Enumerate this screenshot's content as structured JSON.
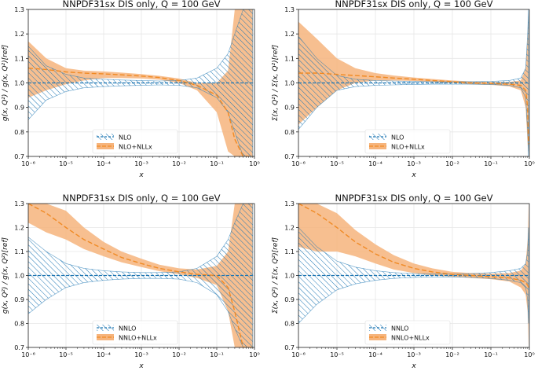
{
  "colors": {
    "blue": "#1f77b4",
    "orange": "#f08a24",
    "orange_fill": "#f6b47c"
  },
  "chart_data": [
    {
      "type": "area",
      "title": "NNPDF31sx DIS only, Q = 100 GeV",
      "xlabel": "x",
      "ylabel": "g(x, Q²) / g(x, Q²)[ref]",
      "xscale": "log",
      "xlim": [
        1e-06,
        1
      ],
      "ylim": [
        0.7,
        1.3
      ],
      "xticks": [
        "10⁻⁶",
        "10⁻⁵",
        "10⁻⁴",
        "10⁻³",
        "10⁻²",
        "10⁻¹",
        "10⁰"
      ],
      "yticks": [
        "0.7",
        "0.8",
        "0.9",
        "1.0",
        "1.1",
        "1.2",
        "1.3"
      ],
      "grid": true,
      "legend_position": "bottom-center",
      "x": [
        1e-06,
        3e-06,
        1e-05,
        3e-05,
        0.0001,
        0.0003,
        0.001,
        0.003,
        0.01,
        0.03,
        0.1,
        0.2,
        0.3,
        0.5,
        0.7,
        0.9
      ],
      "series": [
        {
          "name": "NLO",
          "style": "hatched",
          "central": [
            1,
            1,
            1,
            1,
            1,
            1,
            1,
            1,
            1,
            1,
            1,
            1,
            1,
            1,
            1,
            1
          ],
          "upper": [
            1.15,
            1.07,
            1.035,
            1.02,
            1.015,
            1.012,
            1.01,
            1.008,
            1.01,
            1.02,
            1.06,
            1.12,
            1.2,
            1.3,
            1.3,
            1.3
          ],
          "lower": [
            0.85,
            0.93,
            0.965,
            0.98,
            0.985,
            0.988,
            0.99,
            0.992,
            0.99,
            0.98,
            0.94,
            0.88,
            0.8,
            0.7,
            0.7,
            0.7
          ]
        },
        {
          "name": "NLO+NLLx",
          "style": "filled",
          "central": [
            1.06,
            1.055,
            1.045,
            1.04,
            1.037,
            1.033,
            1.028,
            1.022,
            1.01,
            0.99,
            0.95,
            0.88,
            0.77,
            0.7,
            0.7,
            0.7
          ],
          "upper": [
            1.17,
            1.1,
            1.06,
            1.05,
            1.047,
            1.042,
            1.036,
            1.029,
            1.018,
            1.0,
            1.0,
            1.05,
            1.3,
            1.3,
            1.3,
            1.3
          ],
          "lower": [
            0.94,
            0.97,
            0.995,
            1.01,
            1.02,
            1.02,
            1.018,
            1.013,
            1.0,
            0.97,
            0.88,
            0.72,
            0.7,
            0.7,
            0.7,
            0.7
          ]
        }
      ]
    },
    {
      "type": "area",
      "title": "NNPDF31sx DIS only, Q = 100 GeV",
      "xlabel": "x",
      "ylabel": "Σ(x, Q²) / Σ(x, Q²)[ref]",
      "xscale": "log",
      "xlim": [
        1e-06,
        1
      ],
      "ylim": [
        0.7,
        1.3
      ],
      "xticks": [
        "10⁻⁶",
        "10⁻⁵",
        "10⁻⁴",
        "10⁻³",
        "10⁻²",
        "10⁻¹",
        "10⁰"
      ],
      "yticks": [
        "0.7",
        "0.8",
        "0.9",
        "1.0",
        "1.1",
        "1.2",
        "1.3"
      ],
      "grid": true,
      "legend_position": "bottom-center",
      "x": [
        1e-06,
        3e-06,
        1e-05,
        3e-05,
        0.0001,
        0.0003,
        0.001,
        0.003,
        0.01,
        0.03,
        0.1,
        0.3,
        0.6,
        0.8,
        0.9,
        0.95
      ],
      "series": [
        {
          "name": "NLO",
          "style": "hatched",
          "central": [
            1,
            1,
            1,
            1,
            1,
            1,
            1,
            1,
            1,
            1,
            1,
            1,
            1,
            1,
            1,
            1
          ],
          "upper": [
            1.19,
            1.1,
            1.03,
            1.015,
            1.01,
            1.008,
            1.006,
            1.005,
            1.005,
            1.005,
            1.006,
            1.01,
            1.02,
            1.06,
            1.2,
            1.3
          ],
          "lower": [
            0.81,
            0.9,
            0.97,
            0.985,
            0.99,
            0.992,
            0.994,
            0.995,
            0.995,
            0.995,
            0.994,
            0.99,
            0.98,
            0.94,
            0.8,
            0.7
          ]
        },
        {
          "name": "NLO+NLLx",
          "style": "filled",
          "central": [
            1.04,
            1.04,
            1.035,
            1.03,
            1.025,
            1.02,
            1.015,
            1.01,
            1.005,
            1.0,
            0.998,
            0.995,
            0.99,
            0.97,
            0.9,
            0.75
          ],
          "upper": [
            1.25,
            1.18,
            1.1,
            1.06,
            1.04,
            1.03,
            1.022,
            1.016,
            1.01,
            1.006,
            1.004,
            1.004,
            1.01,
            1.06,
            1.2,
            1.3
          ],
          "lower": [
            0.83,
            0.9,
            0.97,
            1.0,
            1.01,
            1.01,
            1.008,
            1.004,
            1.0,
            0.994,
            0.992,
            0.986,
            0.97,
            0.9,
            0.75,
            0.7
          ]
        }
      ]
    },
    {
      "type": "area",
      "title": "NNPDF31sx DIS only, Q = 100 GeV",
      "xlabel": "x",
      "ylabel": "g(x, Q²) / g(x, Q²)[ref]",
      "xscale": "log",
      "xlim": [
        1e-06,
        1
      ],
      "ylim": [
        0.7,
        1.3
      ],
      "xticks": [
        "10⁻⁶",
        "10⁻⁵",
        "10⁻⁴",
        "10⁻³",
        "10⁻²",
        "10⁻¹",
        "10⁰"
      ],
      "yticks": [
        "0.7",
        "0.8",
        "0.9",
        "1.0",
        "1.1",
        "1.2",
        "1.3"
      ],
      "grid": true,
      "legend_position": "bottom-center",
      "x": [
        1e-06,
        3e-06,
        1e-05,
        3e-05,
        0.0001,
        0.0003,
        0.001,
        0.003,
        0.01,
        0.03,
        0.1,
        0.2,
        0.3,
        0.5,
        0.7,
        0.9
      ],
      "series": [
        {
          "name": "NNLO",
          "style": "hatched",
          "central": [
            1,
            1,
            1,
            1,
            1,
            1,
            1,
            1,
            1,
            1,
            1,
            1,
            1,
            1,
            1,
            1
          ],
          "upper": [
            1.16,
            1.1,
            1.05,
            1.03,
            1.02,
            1.015,
            1.012,
            1.012,
            1.015,
            1.03,
            1.08,
            1.15,
            1.22,
            1.3,
            1.3,
            1.3
          ],
          "lower": [
            0.84,
            0.9,
            0.95,
            0.97,
            0.98,
            0.985,
            0.988,
            0.988,
            0.985,
            0.97,
            0.92,
            0.85,
            0.78,
            0.7,
            0.7,
            0.7
          ]
        },
        {
          "name": "NNLO+NLLx",
          "style": "filled",
          "central": [
            1.3,
            1.26,
            1.2,
            1.15,
            1.11,
            1.075,
            1.05,
            1.03,
            1.015,
            1.005,
            1.0,
            0.95,
            0.85,
            0.7,
            0.7,
            0.7
          ],
          "upper": [
            1.3,
            1.3,
            1.27,
            1.2,
            1.14,
            1.1,
            1.07,
            1.045,
            1.03,
            1.025,
            1.04,
            1.1,
            1.3,
            1.3,
            1.3,
            1.3
          ],
          "lower": [
            1.22,
            1.18,
            1.15,
            1.11,
            1.08,
            1.055,
            1.035,
            1.018,
            1.005,
            0.99,
            0.96,
            0.85,
            0.7,
            0.7,
            0.7,
            0.7
          ]
        }
      ]
    },
    {
      "type": "area",
      "title": "NNPDF31sx DIS only, Q = 100 GeV",
      "xlabel": "x",
      "ylabel": "Σ(x, Q²) / Σ(x, Q²)[ref]",
      "xscale": "log",
      "xlim": [
        1e-06,
        1
      ],
      "ylim": [
        0.7,
        1.3
      ],
      "xticks": [
        "10⁻⁶",
        "10⁻⁵",
        "10⁻⁴",
        "10⁻³",
        "10⁻²",
        "10⁻¹",
        "10⁰"
      ],
      "yticks": [
        "0.7",
        "0.8",
        "0.9",
        "1.0",
        "1.1",
        "1.2",
        "1.3"
      ],
      "grid": true,
      "legend_position": "bottom-center",
      "x": [
        1e-06,
        3e-06,
        1e-05,
        3e-05,
        0.0001,
        0.0003,
        0.001,
        0.003,
        0.01,
        0.03,
        0.1,
        0.3,
        0.6,
        0.8,
        0.9,
        0.95
      ],
      "series": [
        {
          "name": "NNLO",
          "style": "hatched",
          "central": [
            1,
            1,
            1,
            1,
            1,
            1,
            1,
            1,
            1,
            1,
            1,
            1,
            1,
            1,
            1,
            1
          ],
          "upper": [
            1.2,
            1.12,
            1.06,
            1.035,
            1.02,
            1.012,
            1.008,
            1.006,
            1.006,
            1.008,
            1.012,
            1.02,
            1.03,
            1.05,
            1.1,
            1.2
          ],
          "lower": [
            0.8,
            0.88,
            0.94,
            0.965,
            0.98,
            0.988,
            0.992,
            0.994,
            0.994,
            0.992,
            0.988,
            0.98,
            0.97,
            0.95,
            0.9,
            0.8
          ]
        },
        {
          "name": "NNLO+NLLx",
          "style": "filled",
          "central": [
            1.3,
            1.26,
            1.2,
            1.14,
            1.09,
            1.055,
            1.03,
            1.015,
            1.005,
            1.0,
            0.995,
            0.99,
            0.98,
            0.97,
            0.96,
            0.95
          ],
          "upper": [
            1.3,
            1.3,
            1.26,
            1.19,
            1.13,
            1.085,
            1.05,
            1.03,
            1.015,
            1.01,
            1.008,
            1.01,
            1.02,
            1.05,
            1.15,
            1.3
          ],
          "lower": [
            1.12,
            1.1,
            1.1,
            1.08,
            1.05,
            1.025,
            1.01,
            1.0,
            0.995,
            0.99,
            0.985,
            0.975,
            0.95,
            0.92,
            0.85,
            0.7
          ]
        }
      ]
    }
  ]
}
